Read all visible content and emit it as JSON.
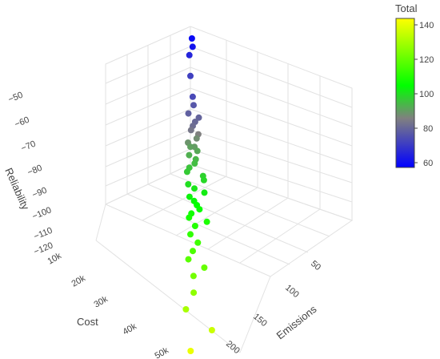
{
  "chart_data": {
    "type": "scatter3d",
    "title": "",
    "axes": {
      "x": {
        "label": "Cost",
        "ticks": [
          "10k",
          "20k",
          "30k",
          "40k",
          "50k"
        ]
      },
      "y": {
        "label": "Emissions",
        "ticks": [
          "50",
          "100",
          "150",
          "200"
        ]
      },
      "z": {
        "label": "Reliability",
        "ticks": [
          "−50",
          "−60",
          "−70",
          "−80",
          "−90",
          "−100",
          "−110",
          "−120"
        ]
      }
    },
    "colorbar": {
      "title": "Total",
      "ticks": [
        "140",
        "120",
        "100",
        "80",
        "60"
      ],
      "range": [
        58,
        143
      ],
      "colorscale": [
        "#0000ff",
        "#808080",
        "#00ff00",
        "#ffff00"
      ]
    },
    "points": [
      {
        "c": 60,
        "z": -45
      },
      {
        "c": 62,
        "z": -47
      },
      {
        "c": 66,
        "z": -49
      },
      {
        "c": 72,
        "z": -54
      },
      {
        "c": 74,
        "z": -59
      },
      {
        "c": 77,
        "z": -61
      },
      {
        "c": 79,
        "z": -63
      },
      {
        "c": 80,
        "z": -64
      },
      {
        "c": 81,
        "z": -65
      },
      {
        "c": 82,
        "z": -66
      },
      {
        "c": 84,
        "z": -67
      },
      {
        "c": 86,
        "z": -68
      },
      {
        "c": 88,
        "z": -69
      },
      {
        "c": 89,
        "z": -70
      },
      {
        "c": 90,
        "z": -71
      },
      {
        "c": 91,
        "z": -71
      },
      {
        "c": 92,
        "z": -72
      },
      {
        "c": 93,
        "z": -73
      },
      {
        "c": 94,
        "z": -74
      },
      {
        "c": 95,
        "z": -75
      },
      {
        "c": 96,
        "z": -76
      },
      {
        "c": 97,
        "z": -77
      },
      {
        "c": 98,
        "z": -78
      },
      {
        "c": 99,
        "z": -79
      },
      {
        "c": 100,
        "z": -80
      },
      {
        "c": 101,
        "z": -81
      },
      {
        "c": 102,
        "z": -82
      },
      {
        "c": 103,
        "z": -83
      },
      {
        "c": 104,
        "z": -84
      },
      {
        "c": 105,
        "z": -85
      },
      {
        "c": 106,
        "z": -86
      },
      {
        "c": 107,
        "z": -87
      },
      {
        "c": 108,
        "z": -88
      },
      {
        "c": 109,
        "z": -89
      },
      {
        "c": 110,
        "z": -90
      },
      {
        "c": 112,
        "z": -92
      },
      {
        "c": 114,
        "z": -94
      },
      {
        "c": 116,
        "z": -96
      },
      {
        "c": 118,
        "z": -98
      },
      {
        "c": 120,
        "z": -100
      },
      {
        "c": 122,
        "z": -102
      },
      {
        "c": 126,
        "z": -106
      },
      {
        "c": 130,
        "z": -110
      },
      {
        "c": 135,
        "z": -115
      },
      {
        "c": 140,
        "z": -120
      }
    ]
  }
}
